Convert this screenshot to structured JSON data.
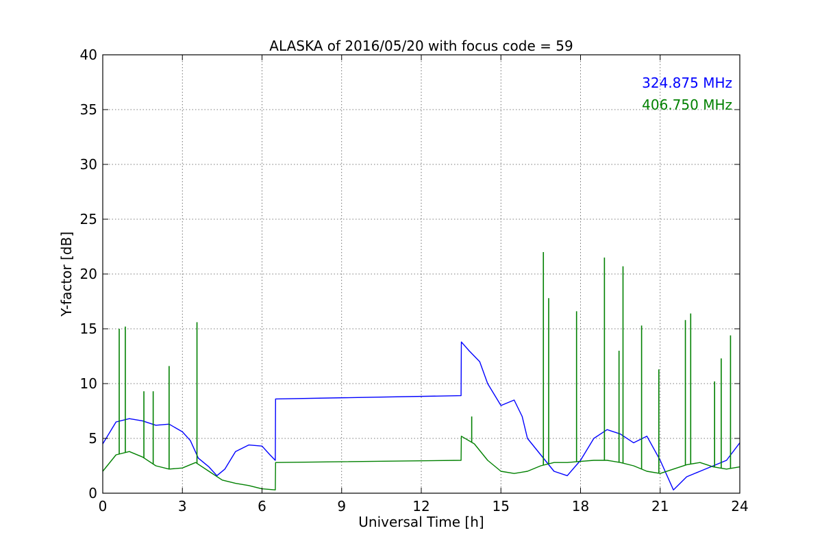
{
  "chart_data": {
    "type": "line",
    "title": "ALASKA of 2016/05/20 with focus code = 59",
    "xlabel": "Universal Time [h]",
    "ylabel": "Y-factor [dB]",
    "xlim": [
      0,
      24
    ],
    "ylim": [
      0,
      40
    ],
    "xticks": [
      "0",
      "3",
      "6",
      "9",
      "12",
      "15",
      "18",
      "21",
      "24"
    ],
    "yticks": [
      "0",
      "5",
      "10",
      "15",
      "20",
      "25",
      "30",
      "35",
      "40"
    ],
    "grid": true,
    "legend_position": "top-right",
    "series": [
      {
        "name": "324.875 MHz",
        "color": "#0000ff",
        "x": [
          0,
          0.5,
          1.0,
          1.5,
          2.0,
          2.5,
          3.0,
          3.3,
          3.6,
          4.0,
          4.3,
          4.6,
          5.0,
          5.5,
          6.0,
          6.3,
          6.5,
          6.51,
          13.5,
          13.51,
          13.8,
          14.2,
          14.5,
          15.0,
          15.5,
          15.8,
          16.0,
          16.5,
          17.0,
          17.5,
          18.0,
          18.5,
          19.0,
          19.5,
          20.0,
          20.5,
          21.0,
          21.5,
          22.0,
          22.5,
          23.0,
          23.5,
          24.0
        ],
        "y": [
          4.5,
          6.5,
          6.8,
          6.6,
          6.2,
          6.3,
          5.6,
          4.8,
          3.2,
          2.4,
          1.6,
          2.2,
          3.8,
          4.4,
          4.3,
          3.5,
          3.0,
          8.6,
          8.9,
          13.8,
          13.0,
          12.0,
          10.0,
          8.0,
          8.5,
          7.0,
          5.0,
          3.5,
          2.0,
          1.6,
          3.0,
          5.0,
          5.8,
          5.4,
          4.6,
          5.2,
          3.0,
          0.3,
          1.5,
          2.0,
          2.5,
          3.0,
          4.6
        ]
      },
      {
        "name": "406.750 MHz",
        "color": "#008000",
        "x": [
          0,
          0.5,
          1.0,
          1.5,
          2.0,
          2.5,
          3.0,
          3.5,
          4.0,
          4.5,
          5.0,
          5.5,
          6.0,
          6.5,
          6.51,
          13.5,
          13.51,
          14.0,
          14.5,
          15.0,
          15.5,
          16.0,
          16.5,
          17.0,
          17.5,
          18.0,
          18.5,
          19.0,
          19.5,
          20.0,
          20.5,
          21.0,
          21.5,
          22.0,
          22.5,
          23.0,
          23.5,
          24.0
        ],
        "y": [
          2.0,
          3.5,
          3.8,
          3.3,
          2.5,
          2.2,
          2.3,
          2.8,
          2.0,
          1.2,
          0.9,
          0.7,
          0.4,
          0.3,
          2.8,
          3.0,
          5.2,
          4.5,
          3.0,
          2.0,
          1.8,
          2.0,
          2.5,
          2.8,
          2.8,
          2.9,
          3.0,
          3.0,
          2.8,
          2.5,
          2.0,
          1.8,
          2.2,
          2.6,
          2.8,
          2.4,
          2.2,
          2.4
        ]
      }
    ],
    "spikes": [
      {
        "series": 1,
        "x": 0.62,
        "y": 15.0
      },
      {
        "series": 1,
        "x": 0.85,
        "y": 15.2
      },
      {
        "series": 1,
        "x": 1.55,
        "y": 9.3
      },
      {
        "series": 1,
        "x": 1.9,
        "y": 9.3
      },
      {
        "series": 1,
        "x": 2.5,
        "y": 11.6
      },
      {
        "series": 1,
        "x": 3.55,
        "y": 15.6
      },
      {
        "series": 1,
        "x": 13.9,
        "y": 7.0
      },
      {
        "series": 1,
        "x": 16.6,
        "y": 22.0
      },
      {
        "series": 1,
        "x": 16.8,
        "y": 17.8
      },
      {
        "series": 1,
        "x": 17.85,
        "y": 16.6
      },
      {
        "series": 1,
        "x": 18.9,
        "y": 21.5
      },
      {
        "series": 1,
        "x": 19.45,
        "y": 13.0
      },
      {
        "series": 1,
        "x": 19.6,
        "y": 20.7
      },
      {
        "series": 1,
        "x": 20.3,
        "y": 15.3
      },
      {
        "series": 1,
        "x": 20.95,
        "y": 11.3
      },
      {
        "series": 1,
        "x": 21.95,
        "y": 15.8
      },
      {
        "series": 1,
        "x": 22.15,
        "y": 16.4
      },
      {
        "series": 1,
        "x": 23.05,
        "y": 10.2
      },
      {
        "series": 1,
        "x": 23.3,
        "y": 12.3
      },
      {
        "series": 1,
        "x": 23.65,
        "y": 14.4
      }
    ]
  }
}
